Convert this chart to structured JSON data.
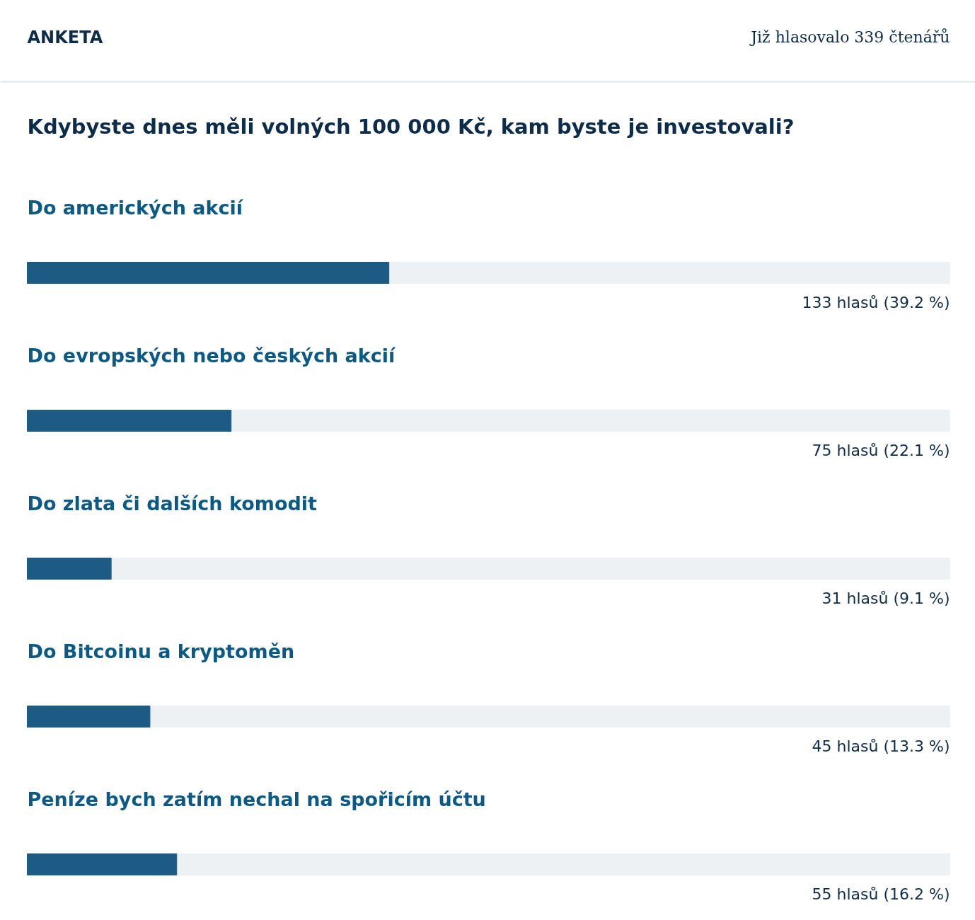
{
  "chart_data": {
    "type": "bar",
    "orientation": "horizontal",
    "title": "ANKETA",
    "subtitle": "Kdybyste dnes měli volných 100 000 Kč, kam byste je investovali?",
    "annotations": [
      "Již hlasovalo 339 čtenářů"
    ],
    "categories": [
      "Do amerických akcií",
      "Do evropských nebo českých akcií",
      "Do zlata či dalších komodit",
      "Do Bitcoinu a kryptoměn",
      "Peníze bych zatím nechal na spořicím účtu"
    ],
    "values": [
      39.2,
      22.1,
      9.1,
      13.3,
      16.2
    ],
    "value_labels": [
      "133 hlasů (39.2 %)",
      "75 hlasů (22.1 %)",
      "31 hlasů (9.1 %)",
      "45 hlasů (13.3 %)",
      "55 hlasů (16.2 %)"
    ],
    "color": "#1d5b84",
    "xlim": [
      0,
      100
    ]
  }
}
